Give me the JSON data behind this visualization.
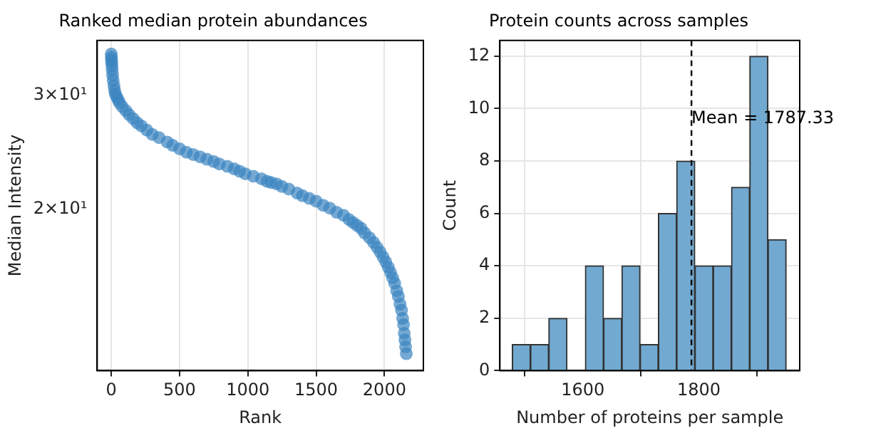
{
  "chart_data": [
    {
      "type": "scatter",
      "title": "Ranked median protein abundances",
      "xlabel": "Rank",
      "ylabel": "Median Intensity",
      "log": "y",
      "grid": "x",
      "marker": "circle",
      "series": [
        {
          "color": "#3a84c1",
          "x": [
            0,
            1,
            2,
            3,
            5,
            7,
            10,
            14,
            20,
            25,
            30,
            40,
            50,
            60,
            80,
            106,
            130,
            160,
            190,
            220,
            260,
            300,
            350,
            410,
            450,
            500,
            550,
            600,
            650,
            700,
            750,
            791,
            850,
            900,
            940,
            981,
            1040,
            1100,
            1140,
            1171,
            1210,
            1250,
            1300,
            1361,
            1400,
            1450,
            1500,
            1551,
            1600,
            1650,
            1700,
            1741,
            1770,
            1800,
            1830,
            1855,
            1890,
            1920,
            1945,
            1969,
            1990,
            2010,
            2028,
            2045,
            2060,
            2075,
            2090,
            2102,
            2114,
            2125,
            2133,
            2140,
            2145,
            2150,
            2155,
            2160
          ],
          "values": [
            34.7,
            34.3,
            34.0,
            33.7,
            33.3,
            32.8,
            32.2,
            31.6,
            31.0,
            30.5,
            30.1,
            29.8,
            29.5,
            29.2,
            28.8,
            28.4,
            28.0,
            27.6,
            27.2,
            26.9,
            26.5,
            26.1,
            25.8,
            25.4,
            25.1,
            24.8,
            24.5,
            24.3,
            24.1,
            23.9,
            23.7,
            23.5,
            23.3,
            23.1,
            22.9,
            22.7,
            22.5,
            22.3,
            22.1,
            22.0,
            21.9,
            21.7,
            21.5,
            21.2,
            21.0,
            20.8,
            20.6,
            20.3,
            20.1,
            19.8,
            19.6,
            19.3,
            19.1,
            18.9,
            18.7,
            18.4,
            18.1,
            17.8,
            17.5,
            17.2,
            16.9,
            16.6,
            16.3,
            16.0,
            15.7,
            15.4,
            15.0,
            14.7,
            14.3,
            14.0,
            13.6,
            13.3,
            12.9,
            12.6,
            12.3,
            12.0
          ]
        }
      ],
      "xlim": [
        -103,
        2285
      ],
      "xticks": [
        0,
        500,
        1000,
        1500,
        2000
      ],
      "ylim": [
        11.3,
        36.4
      ],
      "yticks": [
        {
          "value": 20,
          "label": "2×10¹"
        },
        {
          "value": 30,
          "label": "3×10¹"
        }
      ]
    },
    {
      "type": "histogram",
      "title": "Protein counts across samples",
      "xlabel": "Number of proteins per sample",
      "ylabel": "Count",
      "grid": true,
      "color": "#72a9d0",
      "bins": [
        1478,
        1510,
        1541,
        1573,
        1604,
        1636,
        1667,
        1699,
        1730,
        1762,
        1793,
        1825,
        1856,
        1888,
        1919,
        1951
      ],
      "values": [
        1,
        1,
        2,
        0,
        4,
        2,
        4,
        1,
        6,
        8,
        4,
        4,
        7,
        12,
        5
      ],
      "xlim": [
        1457,
        1974
      ],
      "xticks": [
        1600,
        1800
      ],
      "ylim": [
        0,
        12.6
      ],
      "yticks": [
        0,
        2,
        4,
        6,
        8,
        10,
        12
      ],
      "ref_lines": [
        {
          "axis": "x",
          "value": 1787.33,
          "color": "#000000",
          "line_style": "dashed"
        }
      ],
      "annotations": [
        {
          "text": "Mean = 1787.33",
          "x": 1787.33,
          "y": 9.6
        }
      ]
    }
  ]
}
